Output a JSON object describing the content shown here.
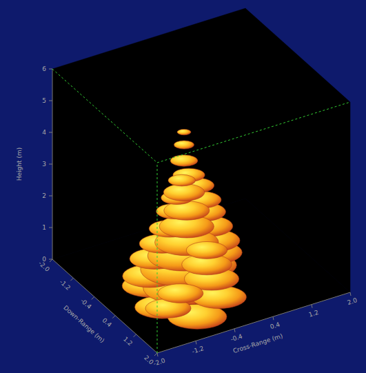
{
  "chart_data": {
    "type": "isosurface3d",
    "x_label": "Cross-Range (m)",
    "y_label": "Down-Range (m)",
    "z_label": "Height (m)",
    "xlim": [
      -2,
      2
    ],
    "xticks": [
      {
        "value": -2,
        "label": "-2.0"
      },
      -1.2,
      -0.4,
      0.4,
      1.2,
      {
        "value": 2,
        "label": "2.0"
      }
    ],
    "ylim": [
      -2,
      2
    ],
    "yticks": [
      {
        "value": -2,
        "label": "-2.0"
      },
      -1.2,
      -0.4,
      0.4,
      1.2,
      {
        "value": 2,
        "label": "2.0"
      }
    ],
    "zlim": [
      0,
      6
    ],
    "zticks": [
      0,
      1,
      2,
      3,
      4,
      5,
      6
    ],
    "x": [
      -0.5,
      -1.3,
      -0.9,
      -0.3,
      -0.2,
      -1.4,
      -0.9,
      -0.5,
      -1.5,
      -0.1,
      -1.5,
      -0.9,
      -0.6,
      -1.3,
      -0.2,
      -1.4,
      -0.9,
      -0.7,
      -0.3,
      -1.3,
      -0.9,
      -0.7,
      -0.4,
      -1.2,
      -0.9,
      -0.5,
      -1.1,
      -0.9,
      -0.6,
      -1.1,
      -0.9,
      -0.8,
      -1.0,
      -0.9,
      -0.9,
      -0.9
    ],
    "y": [
      0.6,
      0.9,
      1.5,
      1.2,
      0.5,
      0.6,
      1.0,
      1.6,
      1.5,
      0.7,
      0.8,
      0.9,
      1.5,
      1.6,
      0.8,
      0.8,
      1.0,
      1.5,
      0.8,
      0.9,
      1.1,
      1.5,
      0.8,
      1.0,
      1.1,
      0.9,
      1.0,
      1.1,
      0.9,
      1.1,
      1.0,
      1.0,
      1.1,
      1.0,
      1.0,
      1.0
    ],
    "z": [
      0.3,
      0.3,
      0.25,
      0.35,
      0.8,
      0.8,
      0.8,
      0.75,
      0.8,
      1.3,
      1.3,
      1.3,
      1.3,
      1.25,
      1.8,
      1.8,
      1.8,
      1.8,
      2.3,
      2.3,
      2.3,
      2.25,
      2.8,
      2.8,
      2.8,
      3.3,
      3.3,
      3.3,
      3.8,
      3.8,
      3.8,
      4.3,
      4.3,
      4.8,
      5.3,
      5.7
    ],
    "size": [
      0.7,
      0.6,
      0.65,
      0.55,
      0.7,
      0.6,
      0.9,
      0.6,
      0.5,
      0.6,
      0.6,
      0.9,
      0.6,
      0.5,
      0.6,
      0.55,
      0.8,
      0.55,
      0.55,
      0.5,
      0.7,
      0.45,
      0.5,
      0.45,
      0.6,
      0.45,
      0.4,
      0.5,
      0.4,
      0.35,
      0.45,
      0.35,
      0.3,
      0.3,
      0.22,
      0.15
    ]
  }
}
